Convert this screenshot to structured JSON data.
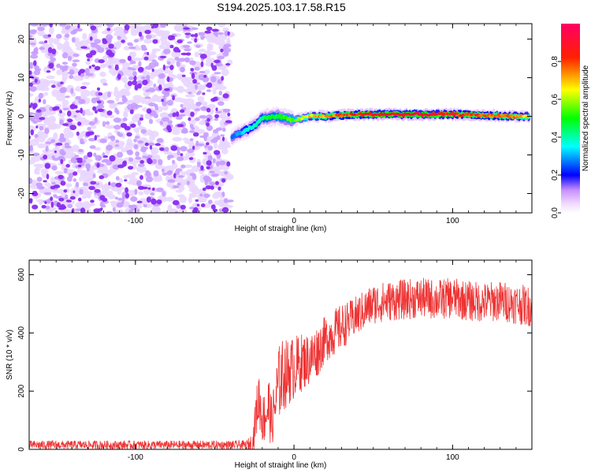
{
  "title": "S194.2025.103.17.58.R15",
  "chart_data": [
    {
      "type": "heatmap",
      "xlabel": "Height of straight line (km)",
      "ylabel": "Frequency (Hz)",
      "xlim": [
        -167,
        150
      ],
      "ylim": [
        -25,
        24
      ],
      "x_ticks": [
        -100,
        0,
        100
      ],
      "x_tick_labels": [
        "-100",
        "0",
        "100"
      ],
      "y_ticks": [
        -20,
        -10,
        0,
        10,
        20
      ],
      "y_tick_labels": [
        "-20",
        "-10",
        "0",
        "10",
        "20"
      ],
      "noise_region": {
        "x_range": [
          -167,
          -40
        ],
        "y_range": [
          -25,
          24
        ],
        "level": 0.05
      },
      "ridge": [
        {
          "x": -39,
          "freq": -5.5,
          "amp": 0.25
        },
        {
          "x": -35,
          "freq": -4.5,
          "amp": 0.3
        },
        {
          "x": -30,
          "freq": -3.5,
          "amp": 0.35
        },
        {
          "x": -25,
          "freq": -2.5,
          "amp": 0.4
        },
        {
          "x": -20,
          "freq": -0.5,
          "amp": 0.45
        },
        {
          "x": -10,
          "freq": 0.0,
          "amp": 0.5
        },
        {
          "x": 0,
          "freq": -1.0,
          "amp": 0.55
        },
        {
          "x": 10,
          "freq": 0.0,
          "amp": 0.7
        },
        {
          "x": 20,
          "freq": 0.0,
          "amp": 0.75
        },
        {
          "x": 30,
          "freq": 0.3,
          "amp": 0.8
        },
        {
          "x": 40,
          "freq": 0.5,
          "amp": 0.85
        },
        {
          "x": 60,
          "freq": 0.5,
          "amp": 0.9
        },
        {
          "x": 80,
          "freq": 0.5,
          "amp": 0.9
        },
        {
          "x": 100,
          "freq": 0.5,
          "amp": 0.85
        },
        {
          "x": 120,
          "freq": 0.3,
          "amp": 0.8
        },
        {
          "x": 140,
          "freq": 0.0,
          "amp": 0.75
        },
        {
          "x": 148,
          "freq": 0.0,
          "amp": 0.7
        }
      ],
      "colorbar": {
        "label": "Normalized spectral amplitude",
        "range": [
          0.0,
          1.0
        ],
        "ticks": [
          0.0,
          0.2,
          0.4,
          0.6,
          0.8
        ],
        "tick_labels": [
          "0.0",
          "0.2",
          "0.4",
          "0.6",
          "0.8"
        ]
      }
    },
    {
      "type": "line",
      "xlabel": "Height of straight line (km)",
      "ylabel": "SNR (10 * v/v)",
      "xlim": [
        -167,
        150
      ],
      "ylim": [
        0,
        650
      ],
      "x_ticks": [
        -100,
        0,
        100
      ],
      "x_tick_labels": [
        "-100",
        "0",
        "100"
      ],
      "y_ticks": [
        0,
        200,
        400,
        600
      ],
      "y_tick_labels": [
        "0",
        "200",
        "400",
        "600"
      ],
      "color": "#ee3333",
      "series": [
        {
          "x": [
            -167,
            -150,
            -130,
            -110,
            -90,
            -70,
            -50,
            -40,
            -30,
            -26,
            -24,
            -22,
            -20,
            -18,
            -16,
            -14,
            -12,
            -10,
            -8,
            -5,
            0,
            5,
            10,
            15,
            20,
            25,
            30,
            35,
            40,
            50,
            60,
            70,
            80,
            90,
            100,
            110,
            120,
            130,
            140,
            150
          ],
          "y": [
            15,
            15,
            15,
            15,
            15,
            15,
            15,
            15,
            15,
            20,
            120,
            180,
            100,
            120,
            150,
            90,
            150,
            220,
            250,
            260,
            280,
            300,
            310,
            340,
            380,
            400,
            420,
            440,
            460,
            500,
            510,
            515,
            520,
            515,
            520,
            510,
            505,
            510,
            500,
            490
          ],
          "noise_amplitude": [
            15,
            15,
            15,
            15,
            15,
            15,
            15,
            15,
            15,
            40,
            80,
            100,
            80,
            100,
            120,
            80,
            110,
            130,
            130,
            120,
            110,
            100,
            90,
            90,
            80,
            80,
            80,
            70,
            70,
            70,
            70,
            70,
            70,
            70,
            70,
            70,
            70,
            70,
            70,
            70
          ]
        }
      ]
    }
  ]
}
